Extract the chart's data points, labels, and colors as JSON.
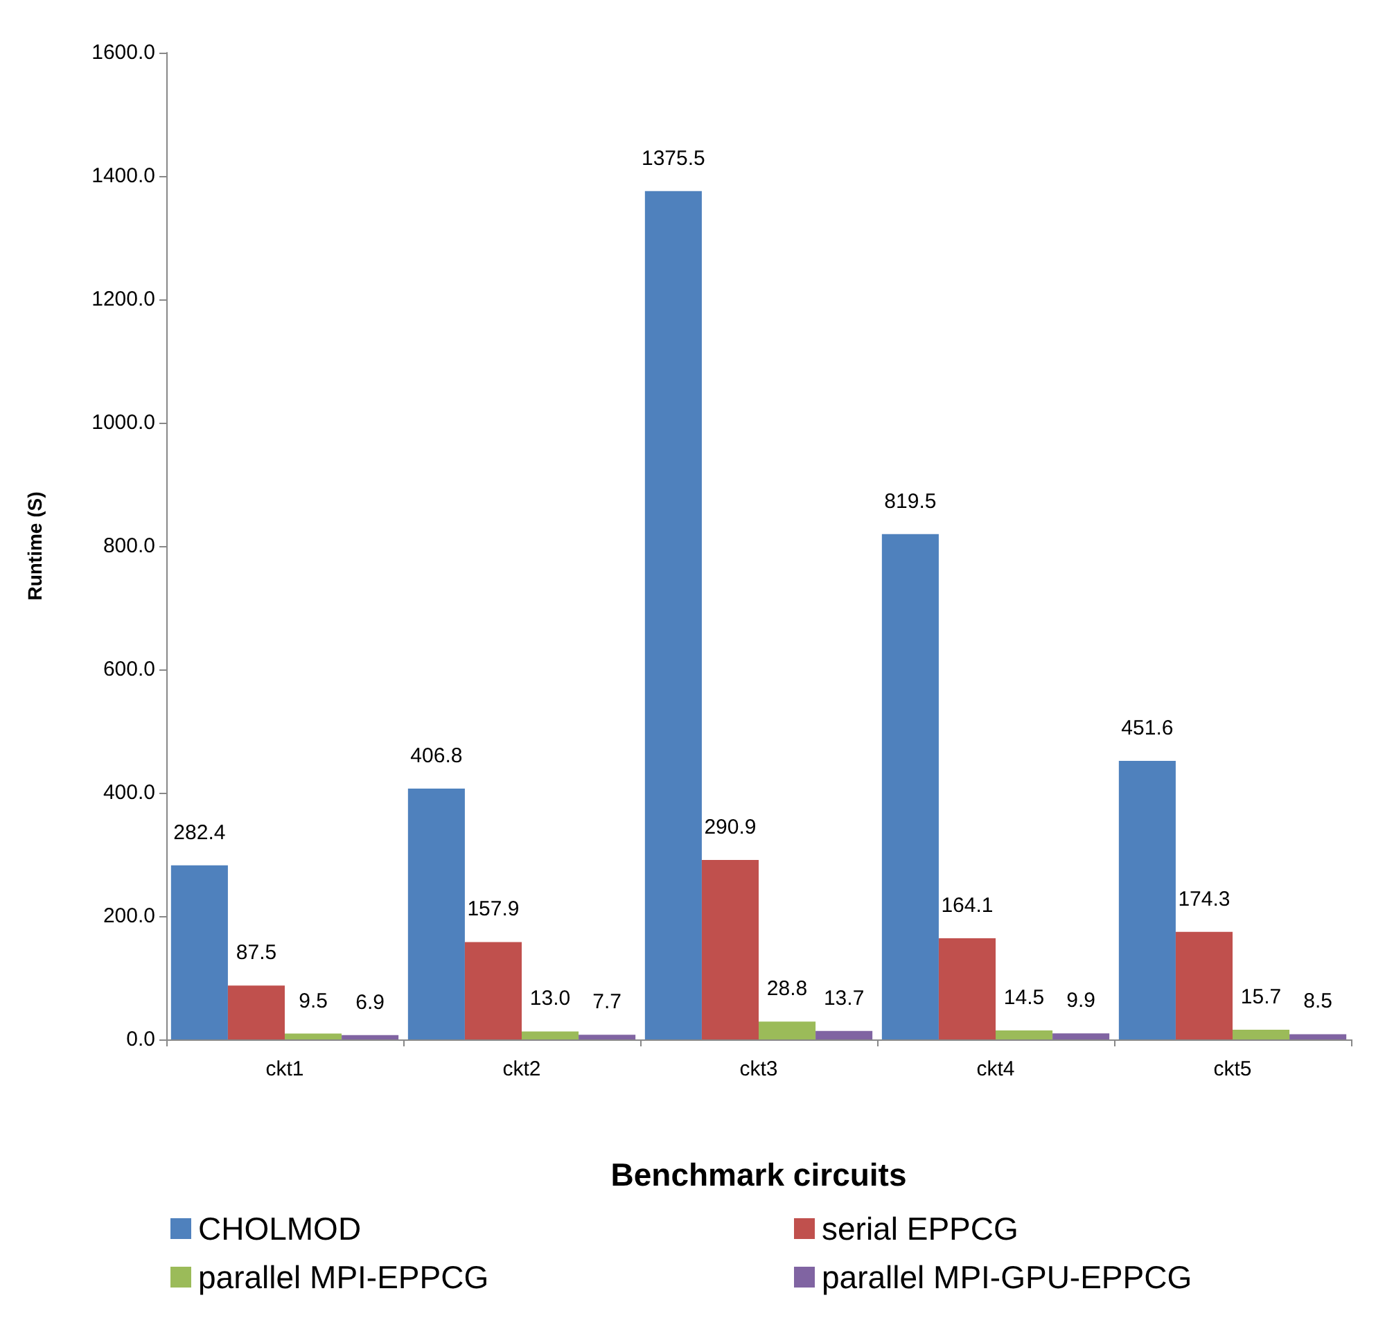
{
  "chart_data": {
    "type": "bar",
    "xlabel": "Benchmark circuits",
    "ylabel": "Runtime (S)",
    "categories": [
      "ckt1",
      "ckt2",
      "ckt3",
      "ckt4",
      "ckt5"
    ],
    "series": [
      {
        "name": "CHOLMOD",
        "color": "#4f81bd",
        "values": [
          282.4,
          406.8,
          1375.5,
          819.5,
          451.6
        ],
        "value_labels": [
          "282.4",
          "406.8",
          "1375.5",
          "819.5",
          "451.6"
        ]
      },
      {
        "name": "serial EPPCG",
        "color": "#c0504d",
        "values": [
          87.5,
          157.9,
          290.9,
          164.1,
          174.3
        ],
        "value_labels": [
          "87.5",
          "157.9",
          "290.9",
          "164.1",
          "174.3"
        ]
      },
      {
        "name": "parallel MPI-EPPCG",
        "color": "#9bbb59",
        "values": [
          9.5,
          13.0,
          28.8,
          14.5,
          15.7
        ],
        "value_labels": [
          "9.5",
          "13.0",
          "28.8",
          "14.5",
          "15.7"
        ]
      },
      {
        "name": "parallel MPI-GPU-EPPCG",
        "color": "#8064a2",
        "values": [
          6.9,
          7.7,
          13.7,
          9.9,
          8.5
        ],
        "value_labels": [
          "6.9",
          "7.7",
          "13.7",
          "9.9",
          "8.5"
        ]
      }
    ],
    "ylim": [
      0,
      1600
    ],
    "yticks": [
      {
        "value": 0,
        "label": "0.0"
      },
      {
        "value": 200,
        "label": "200.0"
      },
      {
        "value": 400,
        "label": "400.0"
      },
      {
        "value": 600,
        "label": "600.0"
      },
      {
        "value": 800,
        "label": "800.0"
      },
      {
        "value": 1000,
        "label": "1000.0"
      },
      {
        "value": 1200,
        "label": "1200.0"
      },
      {
        "value": 1400,
        "label": "1400.0"
      },
      {
        "value": 1600,
        "label": "1600.0"
      }
    ],
    "grid": false,
    "legend": "bottom"
  }
}
